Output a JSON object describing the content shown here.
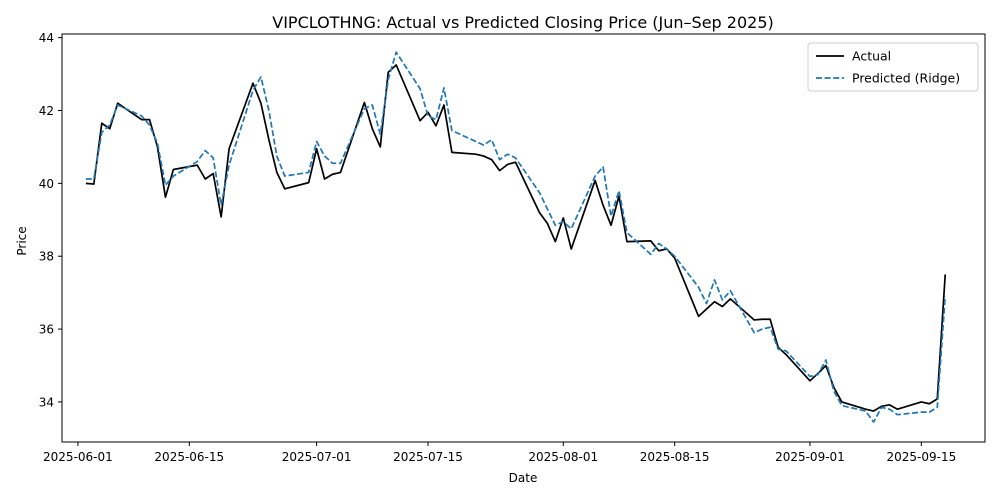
{
  "chart_data": {
    "type": "line",
    "title": "VIPCLOTHNG: Actual vs Predicted Closing Price (Jun–Sep 2025)",
    "xlabel": "Date",
    "ylabel": "Price",
    "xlim": [
      "2025-05-30",
      "2025-09-23"
    ],
    "ylim": [
      32.9,
      44.1
    ],
    "x_ticks": [
      "2025-06-01",
      "2025-06-15",
      "2025-07-01",
      "2025-07-15",
      "2025-08-01",
      "2025-08-15",
      "2025-09-01",
      "2025-09-15"
    ],
    "y_ticks": [
      34,
      36,
      38,
      40,
      42,
      44
    ],
    "grid": false,
    "legend_position": "top-right",
    "series": [
      {
        "name": "Actual",
        "color": "#000000",
        "style": "solid",
        "points": [
          [
            "2025-06-02",
            40.0
          ],
          [
            "2025-06-03",
            39.98
          ],
          [
            "2025-06-04",
            41.65
          ],
          [
            "2025-06-05",
            41.5
          ],
          [
            "2025-06-06",
            42.2
          ],
          [
            "2025-06-09",
            41.75
          ],
          [
            "2025-06-10",
            41.75
          ],
          [
            "2025-06-11",
            41.0
          ],
          [
            "2025-06-12",
            39.62
          ],
          [
            "2025-06-13",
            40.38
          ],
          [
            "2025-06-16",
            40.5
          ],
          [
            "2025-06-17",
            40.12
          ],
          [
            "2025-06-18",
            40.27
          ],
          [
            "2025-06-19",
            39.08
          ],
          [
            "2025-06-20",
            40.95
          ],
          [
            "2025-06-23",
            42.75
          ],
          [
            "2025-06-24",
            42.2
          ],
          [
            "2025-06-25",
            41.2
          ],
          [
            "2025-06-26",
            40.3
          ],
          [
            "2025-06-27",
            39.85
          ],
          [
            "2025-06-30",
            40.02
          ],
          [
            "2025-07-01",
            40.95
          ],
          [
            "2025-07-02",
            40.12
          ],
          [
            "2025-07-03",
            40.25
          ],
          [
            "2025-07-04",
            40.3
          ],
          [
            "2025-07-07",
            42.22
          ],
          [
            "2025-07-08",
            41.5
          ],
          [
            "2025-07-09",
            41.0
          ],
          [
            "2025-07-10",
            43.05
          ],
          [
            "2025-07-11",
            43.25
          ],
          [
            "2025-07-14",
            41.72
          ],
          [
            "2025-07-15",
            41.95
          ],
          [
            "2025-07-16",
            41.58
          ],
          [
            "2025-07-17",
            42.15
          ],
          [
            "2025-07-18",
            40.85
          ],
          [
            "2025-07-21",
            40.8
          ],
          [
            "2025-07-22",
            40.75
          ],
          [
            "2025-07-23",
            40.65
          ],
          [
            "2025-07-24",
            40.35
          ],
          [
            "2025-07-25",
            40.52
          ],
          [
            "2025-07-26",
            40.58
          ],
          [
            "2025-07-29",
            39.2
          ],
          [
            "2025-07-30",
            38.9
          ],
          [
            "2025-07-31",
            38.4
          ],
          [
            "2025-08-01",
            39.05
          ],
          [
            "2025-08-02",
            38.2
          ],
          [
            "2025-08-05",
            40.08
          ],
          [
            "2025-08-06",
            39.4
          ],
          [
            "2025-08-07",
            38.85
          ],
          [
            "2025-08-08",
            39.65
          ],
          [
            "2025-08-09",
            38.4
          ],
          [
            "2025-08-12",
            38.42
          ],
          [
            "2025-08-13",
            38.15
          ],
          [
            "2025-08-14",
            38.2
          ],
          [
            "2025-08-15",
            37.95
          ],
          [
            "2025-08-18",
            36.35
          ],
          [
            "2025-08-19",
            36.55
          ],
          [
            "2025-08-20",
            36.75
          ],
          [
            "2025-08-21",
            36.62
          ],
          [
            "2025-08-22",
            36.83
          ],
          [
            "2025-08-25",
            36.25
          ],
          [
            "2025-08-26",
            36.27
          ],
          [
            "2025-08-27",
            36.27
          ],
          [
            "2025-08-28",
            35.5
          ],
          [
            "2025-08-29",
            35.3
          ],
          [
            "2025-09-01",
            34.58
          ],
          [
            "2025-09-02",
            34.78
          ],
          [
            "2025-09-03",
            35.0
          ],
          [
            "2025-09-04",
            34.4
          ],
          [
            "2025-09-05",
            34.0
          ],
          [
            "2025-09-08",
            33.8
          ],
          [
            "2025-09-09",
            33.75
          ],
          [
            "2025-09-10",
            33.88
          ],
          [
            "2025-09-11",
            33.92
          ],
          [
            "2025-09-12",
            33.8
          ],
          [
            "2025-09-15",
            34.0
          ],
          [
            "2025-09-16",
            33.95
          ],
          [
            "2025-09-17",
            34.08
          ],
          [
            "2025-09-18",
            37.5
          ]
        ]
      },
      {
        "name": "Predicted (Ridge)",
        "color": "#1f77b4",
        "style": "dashed",
        "points": [
          [
            "2025-06-02",
            40.12
          ],
          [
            "2025-06-03",
            40.12
          ],
          [
            "2025-06-04",
            41.4
          ],
          [
            "2025-06-05",
            41.6
          ],
          [
            "2025-06-06",
            42.15
          ],
          [
            "2025-06-09",
            41.85
          ],
          [
            "2025-06-10",
            41.6
          ],
          [
            "2025-06-11",
            41.1
          ],
          [
            "2025-06-12",
            39.95
          ],
          [
            "2025-06-13",
            40.2
          ],
          [
            "2025-06-16",
            40.6
          ],
          [
            "2025-06-17",
            40.9
          ],
          [
            "2025-06-18",
            40.7
          ],
          [
            "2025-06-19",
            39.4
          ],
          [
            "2025-06-20",
            40.5
          ],
          [
            "2025-06-23",
            42.55
          ],
          [
            "2025-06-24",
            42.92
          ],
          [
            "2025-06-25",
            42.0
          ],
          [
            "2025-06-26",
            40.75
          ],
          [
            "2025-06-27",
            40.2
          ],
          [
            "2025-06-30",
            40.3
          ],
          [
            "2025-07-01",
            41.15
          ],
          [
            "2025-07-02",
            40.75
          ],
          [
            "2025-07-03",
            40.55
          ],
          [
            "2025-07-04",
            40.55
          ],
          [
            "2025-07-07",
            42.05
          ],
          [
            "2025-07-08",
            42.15
          ],
          [
            "2025-07-09",
            41.35
          ],
          [
            "2025-07-10",
            42.85
          ],
          [
            "2025-07-11",
            43.6
          ],
          [
            "2025-07-14",
            42.6
          ],
          [
            "2025-07-15",
            41.85
          ],
          [
            "2025-07-16",
            41.75
          ],
          [
            "2025-07-17",
            42.62
          ],
          [
            "2025-07-18",
            41.45
          ],
          [
            "2025-07-21",
            41.15
          ],
          [
            "2025-07-22",
            41.05
          ],
          [
            "2025-07-23",
            41.2
          ],
          [
            "2025-07-24",
            40.65
          ],
          [
            "2025-07-25",
            40.8
          ],
          [
            "2025-07-26",
            40.7
          ],
          [
            "2025-07-29",
            39.75
          ],
          [
            "2025-07-30",
            39.3
          ],
          [
            "2025-07-31",
            38.85
          ],
          [
            "2025-08-01",
            38.95
          ],
          [
            "2025-08-02",
            38.75
          ],
          [
            "2025-08-05",
            40.2
          ],
          [
            "2025-08-06",
            40.45
          ],
          [
            "2025-08-07",
            39.1
          ],
          [
            "2025-08-08",
            39.8
          ],
          [
            "2025-08-09",
            38.65
          ],
          [
            "2025-08-12",
            38.05
          ],
          [
            "2025-08-13",
            38.35
          ],
          [
            "2025-08-14",
            38.2
          ],
          [
            "2025-08-15",
            38.0
          ],
          [
            "2025-08-18",
            37.15
          ],
          [
            "2025-08-19",
            36.7
          ],
          [
            "2025-08-20",
            37.35
          ],
          [
            "2025-08-21",
            36.8
          ],
          [
            "2025-08-22",
            37.05
          ],
          [
            "2025-08-25",
            35.9
          ],
          [
            "2025-08-26",
            36.0
          ],
          [
            "2025-08-27",
            36.05
          ],
          [
            "2025-08-28",
            35.45
          ],
          [
            "2025-08-29",
            35.4
          ],
          [
            "2025-09-01",
            34.7
          ],
          [
            "2025-09-02",
            34.75
          ],
          [
            "2025-09-03",
            35.15
          ],
          [
            "2025-09-04",
            34.3
          ],
          [
            "2025-09-05",
            33.9
          ],
          [
            "2025-09-08",
            33.75
          ],
          [
            "2025-09-09",
            33.45
          ],
          [
            "2025-09-10",
            33.85
          ],
          [
            "2025-09-11",
            33.8
          ],
          [
            "2025-09-12",
            33.65
          ],
          [
            "2025-09-15",
            33.72
          ],
          [
            "2025-09-16",
            33.72
          ],
          [
            "2025-09-17",
            33.85
          ],
          [
            "2025-09-18",
            36.9
          ]
        ]
      }
    ]
  }
}
